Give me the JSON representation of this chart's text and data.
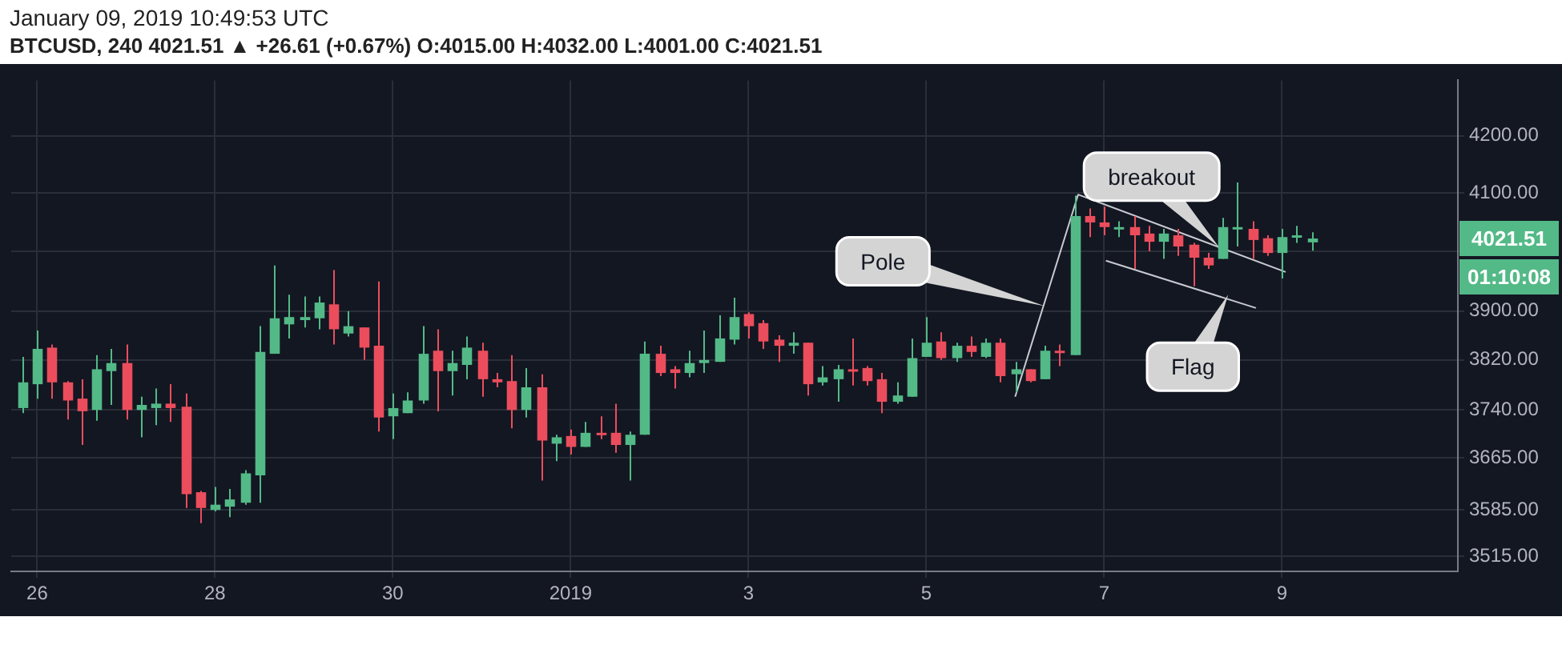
{
  "chart_data": {
    "type": "candlestick",
    "title": "January 09, 2019 10:49:53 UTC",
    "subtitle": "BTCUSD, 240  4021.51 ▲ +26.61 (+0.67%) O:4015.00 H:4032.00 L:4001.00 C:4021.51",
    "x": [
      "2018-12-25T20:00",
      "2018-12-26T00:00",
      "2018-12-26T04:00",
      "2018-12-26T08:00",
      "2018-12-26T12:00",
      "2018-12-26T16:00",
      "2018-12-26T20:00",
      "2018-12-27T00:00",
      "2018-12-27T04:00",
      "2018-12-27T08:00",
      "2018-12-27T12:00",
      "2018-12-27T16:00",
      "2018-12-27T20:00",
      "2018-12-28T00:00",
      "2018-12-28T04:00",
      "2018-12-28T08:00",
      "2018-12-28T12:00",
      "2018-12-28T16:00",
      "2018-12-28T20:00",
      "2018-12-29T00:00",
      "2018-12-29T04:00",
      "2018-12-29T08:00",
      "2018-12-29T12:00",
      "2018-12-29T16:00",
      "2018-12-29T20:00",
      "2018-12-30T00:00",
      "2018-12-30T04:00",
      "2018-12-30T08:00",
      "2018-12-30T12:00",
      "2018-12-30T16:00",
      "2018-12-30T20:00",
      "2018-12-31T00:00",
      "2018-12-31T04:00",
      "2018-12-31T08:00",
      "2018-12-31T12:00",
      "2018-12-31T16:00",
      "2018-12-31T20:00",
      "2019-01-01T00:00",
      "2019-01-01T04:00",
      "2019-01-01T08:00",
      "2019-01-01T12:00",
      "2019-01-01T16:00",
      "2019-01-01T20:00",
      "2019-01-02T00:00",
      "2019-01-02T04:00",
      "2019-01-02T08:00",
      "2019-01-02T12:00",
      "2019-01-02T16:00",
      "2019-01-02T20:00",
      "2019-01-03T00:00",
      "2019-01-03T04:00",
      "2019-01-03T08:00",
      "2019-01-03T12:00",
      "2019-01-03T16:00",
      "2019-01-03T20:00",
      "2019-01-04T00:00",
      "2019-01-04T04:00",
      "2019-01-04T08:00",
      "2019-01-04T12:00",
      "2019-01-04T16:00",
      "2019-01-04T20:00",
      "2019-01-05T00:00",
      "2019-01-05T04:00",
      "2019-01-05T08:00",
      "2019-01-05T12:00",
      "2019-01-05T16:00",
      "2019-01-05T20:00",
      "2019-01-06T00:00",
      "2019-01-06T04:00",
      "2019-01-06T08:00",
      "2019-01-06T12:00",
      "2019-01-06T16:00",
      "2019-01-06T20:00",
      "2019-01-07T00:00",
      "2019-01-07T04:00",
      "2019-01-07T08:00",
      "2019-01-07T12:00",
      "2019-01-07T16:00",
      "2019-01-07T20:00",
      "2019-01-08T00:00",
      "2019-01-08T04:00",
      "2019-01-08T08:00",
      "2019-01-08T12:00",
      "2019-01-08T16:00",
      "2019-01-08T20:00",
      "2019-01-09T00:00",
      "2019-01-09T04:00",
      "2019-01-09T08:00"
    ],
    "ohlc": [
      [
        3743,
        3825,
        3735,
        3784
      ],
      [
        3781,
        3868,
        3758,
        3838
      ],
      [
        3840,
        3845,
        3758,
        3784
      ],
      [
        3784,
        3786,
        3725,
        3755
      ],
      [
        3758,
        3789,
        3685,
        3738
      ],
      [
        3740,
        3828,
        3723,
        3805
      ],
      [
        3802,
        3838,
        3748,
        3815
      ],
      [
        3815,
        3845,
        3725,
        3740
      ],
      [
        3740,
        3761,
        3697,
        3748
      ],
      [
        3743,
        3774,
        3716,
        3750
      ],
      [
        3750,
        3781,
        3721,
        3743
      ],
      [
        3745,
        3766,
        3588,
        3609
      ],
      [
        3612,
        3614,
        3565,
        3588
      ],
      [
        3585,
        3620,
        3583,
        3593
      ],
      [
        3590,
        3617,
        3574,
        3601
      ],
      [
        3596,
        3646,
        3593,
        3641
      ],
      [
        3638,
        3875,
        3596,
        3833
      ],
      [
        3830,
        3976,
        3830,
        3888
      ],
      [
        3878,
        3927,
        3855,
        3890
      ],
      [
        3885,
        3924,
        3873,
        3890
      ],
      [
        3888,
        3924,
        3870,
        3914
      ],
      [
        3911,
        3968,
        3845,
        3870
      ],
      [
        3863,
        3900,
        3858,
        3875
      ],
      [
        3873,
        3873,
        3820,
        3840
      ],
      [
        3843,
        3949,
        3706,
        3728
      ],
      [
        3730,
        3766,
        3694,
        3743
      ],
      [
        3735,
        3768,
        3735,
        3755
      ],
      [
        3755,
        3875,
        3750,
        3830
      ],
      [
        3835,
        3870,
        3738,
        3802
      ],
      [
        3802,
        3835,
        3763,
        3815
      ],
      [
        3812,
        3858,
        3789,
        3840
      ],
      [
        3835,
        3848,
        3761,
        3789
      ],
      [
        3789,
        3799,
        3776,
        3784
      ],
      [
        3786,
        3828,
        3711,
        3740
      ],
      [
        3740,
        3807,
        3728,
        3776
      ],
      [
        3776,
        3797,
        3630,
        3692
      ],
      [
        3687,
        3701,
        3660,
        3697
      ],
      [
        3699,
        3709,
        3670,
        3682
      ],
      [
        3682,
        3721,
        3682,
        3704
      ],
      [
        3704,
        3730,
        3694,
        3701
      ],
      [
        3704,
        3750,
        3673,
        3685
      ],
      [
        3685,
        3706,
        3630,
        3701
      ],
      [
        3701,
        3850,
        3701,
        3830
      ],
      [
        3830,
        3843,
        3794,
        3799
      ],
      [
        3805,
        3810,
        3774,
        3799
      ],
      [
        3799,
        3835,
        3792,
        3815
      ],
      [
        3815,
        3868,
        3799,
        3820
      ],
      [
        3817,
        3893,
        3817,
        3855
      ],
      [
        3853,
        3922,
        3845,
        3890
      ],
      [
        3895,
        3898,
        3855,
        3875
      ],
      [
        3880,
        3885,
        3838,
        3850
      ],
      [
        3853,
        3860,
        3817,
        3843
      ],
      [
        3843,
        3865,
        3830,
        3848
      ],
      [
        3848,
        3848,
        3763,
        3781
      ],
      [
        3784,
        3810,
        3779,
        3792
      ],
      [
        3789,
        3812,
        3753,
        3805
      ],
      [
        3805,
        3855,
        3779,
        3802
      ],
      [
        3807,
        3810,
        3779,
        3786
      ],
      [
        3789,
        3799,
        3735,
        3753
      ],
      [
        3753,
        3784,
        3750,
        3763
      ],
      [
        3761,
        3855,
        3761,
        3823
      ],
      [
        3825,
        3890,
        3825,
        3848
      ],
      [
        3850,
        3865,
        3820,
        3823
      ],
      [
        3823,
        3848,
        3817,
        3843
      ],
      [
        3843,
        3858,
        3825,
        3833
      ],
      [
        3825,
        3855,
        3823,
        3848
      ],
      [
        3848,
        3855,
        3784,
        3794
      ],
      [
        3797,
        3817,
        3768,
        3805
      ],
      [
        3805,
        3805,
        3784,
        3786
      ],
      [
        3789,
        3843,
        3789,
        3835
      ],
      [
        3835,
        3845,
        3810,
        3833
      ],
      [
        3828,
        4095,
        3828,
        4060
      ],
      [
        4060,
        4073,
        4024,
        4049
      ],
      [
        4049,
        4076,
        4027,
        4041
      ],
      [
        4038,
        4051,
        4024,
        4041
      ],
      [
        4041,
        4060,
        3970,
        4027
      ],
      [
        4030,
        4043,
        4000,
        4016
      ],
      [
        4016,
        4038,
        3987,
        4030
      ],
      [
        4027,
        4038,
        3992,
        4008
      ],
      [
        4011,
        4014,
        3941,
        3989
      ],
      [
        3989,
        3997,
        3970,
        3976
      ],
      [
        3987,
        4057,
        3987,
        4041
      ],
      [
        4038,
        4118,
        4008,
        4041
      ],
      [
        4038,
        4051,
        3987,
        4019
      ],
      [
        4022,
        4027,
        3992,
        3997
      ],
      [
        3997,
        4038,
        3954,
        4024
      ],
      [
        4024,
        4043,
        4014,
        4027
      ],
      [
        4015,
        4032,
        4001,
        4021.51
      ]
    ],
    "colors": [
      "#53b987",
      "#53b987",
      "#eb4d5c",
      "#eb4d5c",
      "#eb4d5c",
      "#53b987",
      "#53b987",
      "#eb4d5c",
      "#53b987",
      "#53b987",
      "#eb4d5c",
      "#eb4d5c",
      "#eb4d5c",
      "#53b987",
      "#53b987",
      "#53b987",
      "#53b987",
      "#53b987",
      "#53b987",
      "#53b987",
      "#53b987",
      "#eb4d5c",
      "#53b987",
      "#eb4d5c",
      "#eb4d5c",
      "#53b987",
      "#53b987",
      "#53b987",
      "#eb4d5c",
      "#53b987",
      "#53b987",
      "#eb4d5c",
      "#eb4d5c",
      "#eb4d5c",
      "#53b987",
      "#eb4d5c",
      "#53b987",
      "#eb4d5c",
      "#53b987",
      "#eb4d5c",
      "#eb4d5c",
      "#53b987",
      "#53b987",
      "#eb4d5c",
      "#eb4d5c",
      "#53b987",
      "#53b987",
      "#53b987",
      "#53b987",
      "#eb4d5c",
      "#eb4d5c",
      "#eb4d5c",
      "#53b987",
      "#eb4d5c",
      "#53b987",
      "#53b987",
      "#eb4d5c",
      "#eb4d5c",
      "#eb4d5c",
      "#53b987",
      "#53b987",
      "#53b987",
      "#eb4d5c",
      "#53b987",
      "#eb4d5c",
      "#53b987",
      "#eb4d5c",
      "#53b987",
      "#eb4d5c",
      "#53b987",
      "#eb4d5c",
      "#53b987",
      "#eb4d5c",
      "#eb4d5c",
      "#53b987",
      "#eb4d5c",
      "#eb4d5c",
      "#53b987",
      "#eb4d5c",
      "#eb4d5c",
      "#eb4d5c",
      "#53b987",
      "#53b987",
      "#eb4d5c",
      "#eb4d5c",
      "#53b987",
      "#53b987",
      "#53b987"
    ],
    "series": [
      {
        "type": "line",
        "color": "#c8cad0",
        "x": [
          "2019-01-06T00:00",
          "2019-01-06T17:00",
          "2019-01-09T01:00"
        ],
        "values": [
          3761,
          4097,
          3965
        ]
      },
      {
        "type": "line",
        "color": "#c8cad0",
        "x": [
          "2019-01-07T00:30",
          "2019-01-08T17:00"
        ],
        "values": [
          3984,
          3905
        ]
      }
    ],
    "xlim": [
      "2018-12-25T17:00",
      "2019-01-10T23:30"
    ],
    "xticks": [
      {
        "value": "2018-12-26",
        "label": "26"
      },
      {
        "value": "2018-12-28",
        "label": "28"
      },
      {
        "value": "2018-12-30",
        "label": "30"
      },
      {
        "value": "2019-01-01",
        "label": "2019"
      },
      {
        "value": "2019-01-03",
        "label": "3"
      },
      {
        "value": "2019-01-05",
        "label": "5"
      },
      {
        "value": "2019-01-07",
        "label": "7"
      },
      {
        "value": "2019-01-09",
        "label": "9"
      }
    ],
    "ylim": [
      3493,
      4300
    ],
    "yticks": [
      {
        "value": 3515,
        "label": "3515.00"
      },
      {
        "value": 3585,
        "label": "3585.00"
      },
      {
        "value": 3665,
        "label": "3665.00"
      },
      {
        "value": 3740,
        "label": "3740.00"
      },
      {
        "value": 3820,
        "label": "3820.00"
      },
      {
        "value": 3900,
        "label": "3900.00"
      },
      {
        "value": 4000,
        "label": null
      },
      {
        "value": 4100,
        "label": "4100.00"
      },
      {
        "value": 4200,
        "label": "4200.00"
      }
    ],
    "log": true,
    "grid": true,
    "annotations": [
      {
        "text": "Pole",
        "x": "2019-01-06T08:00",
        "y": 3908
      },
      {
        "text": "breakout",
        "x": "2019-01-08T07:00",
        "y": 4007
      },
      {
        "text": "Flag",
        "x": "2019-01-08T09:30",
        "y": 3927
      },
      "4021.51",
      "01:10:08"
    ]
  }
}
